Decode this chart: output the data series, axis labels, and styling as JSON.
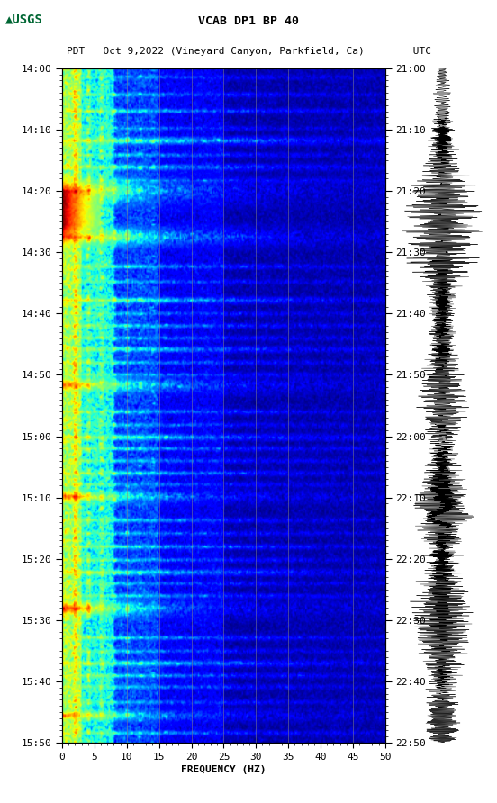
{
  "title_line1": "VCAB DP1 BP 40",
  "title_line2": "PDT   Oct 9,2022 (Vineyard Canyon, Parkfield, Ca)        UTC",
  "xlabel": "FREQUENCY (HZ)",
  "freq_min": 0,
  "freq_max": 50,
  "y_tick_labels_left": [
    "14:00",
    "14:10",
    "14:20",
    "14:30",
    "14:40",
    "14:50",
    "15:00",
    "15:10",
    "15:20",
    "15:30",
    "15:40",
    "15:50"
  ],
  "y_tick_labels_right": [
    "21:00",
    "21:10",
    "21:20",
    "21:30",
    "21:40",
    "21:50",
    "22:00",
    "22:10",
    "22:20",
    "22:30",
    "22:40",
    "22:50"
  ],
  "x_ticks": [
    0,
    5,
    10,
    15,
    20,
    25,
    30,
    35,
    40,
    45,
    50
  ],
  "vert_grid_freqs": [
    5,
    10,
    15,
    20,
    25,
    30,
    35,
    40,
    45
  ],
  "colormap": "jet",
  "n_time_bins": 660,
  "n_freq_bins": 250,
  "events": [
    {
      "t": 0.015,
      "dur": 0.012,
      "amp": 0.55,
      "freq_decay": 18
    },
    {
      "t": 0.04,
      "dur": 0.01,
      "amp": 0.6,
      "freq_decay": 20
    },
    {
      "t": 0.065,
      "dur": 0.012,
      "amp": 0.65,
      "freq_decay": 22
    },
    {
      "t": 0.09,
      "dur": 0.01,
      "amp": 0.55,
      "freq_decay": 18
    },
    {
      "t": 0.108,
      "dur": 0.018,
      "amp": 0.7,
      "freq_decay": 25
    },
    {
      "t": 0.13,
      "dur": 0.012,
      "amp": 0.6,
      "freq_decay": 20
    },
    {
      "t": 0.148,
      "dur": 0.014,
      "amp": 0.65,
      "freq_decay": 22
    },
    {
      "t": 0.168,
      "dur": 0.012,
      "amp": 0.58,
      "freq_decay": 19
    },
    {
      "t": 0.183,
      "dur": 0.06,
      "amp": 0.98,
      "freq_decay": 12
    },
    {
      "t": 0.25,
      "dur": 0.04,
      "amp": 0.9,
      "freq_decay": 15
    },
    {
      "t": 0.295,
      "dur": 0.012,
      "amp": 0.65,
      "freq_decay": 20
    },
    {
      "t": 0.318,
      "dur": 0.01,
      "amp": 0.6,
      "freq_decay": 18
    },
    {
      "t": 0.345,
      "dur": 0.014,
      "amp": 0.72,
      "freq_decay": 22
    },
    {
      "t": 0.365,
      "dur": 0.01,
      "amp": 0.58,
      "freq_decay": 18
    },
    {
      "t": 0.383,
      "dur": 0.012,
      "amp": 0.65,
      "freq_decay": 20
    },
    {
      "t": 0.4,
      "dur": 0.01,
      "amp": 0.6,
      "freq_decay": 19
    },
    {
      "t": 0.418,
      "dur": 0.014,
      "amp": 0.68,
      "freq_decay": 21
    },
    {
      "t": 0.437,
      "dur": 0.012,
      "amp": 0.62,
      "freq_decay": 20
    },
    {
      "t": 0.455,
      "dur": 0.01,
      "amp": 0.6,
      "freq_decay": 18
    },
    {
      "t": 0.47,
      "dur": 0.035,
      "amp": 0.85,
      "freq_decay": 14
    },
    {
      "t": 0.51,
      "dur": 0.012,
      "amp": 0.65,
      "freq_decay": 20
    },
    {
      "t": 0.53,
      "dur": 0.01,
      "amp": 0.6,
      "freq_decay": 18
    },
    {
      "t": 0.548,
      "dur": 0.014,
      "amp": 0.7,
      "freq_decay": 22
    },
    {
      "t": 0.565,
      "dur": 0.012,
      "amp": 0.65,
      "freq_decay": 20
    },
    {
      "t": 0.583,
      "dur": 0.01,
      "amp": 0.62,
      "freq_decay": 19
    },
    {
      "t": 0.6,
      "dur": 0.012,
      "amp": 0.68,
      "freq_decay": 21
    },
    {
      "t": 0.618,
      "dur": 0.01,
      "amp": 0.6,
      "freq_decay": 18
    },
    {
      "t": 0.635,
      "dur": 0.03,
      "amp": 0.88,
      "freq_decay": 13
    },
    {
      "t": 0.67,
      "dur": 0.012,
      "amp": 0.65,
      "freq_decay": 20
    },
    {
      "t": 0.69,
      "dur": 0.01,
      "amp": 0.6,
      "freq_decay": 18
    },
    {
      "t": 0.71,
      "dur": 0.012,
      "amp": 0.68,
      "freq_decay": 21
    },
    {
      "t": 0.73,
      "dur": 0.01,
      "amp": 0.62,
      "freq_decay": 19
    },
    {
      "t": 0.748,
      "dur": 0.014,
      "amp": 0.7,
      "freq_decay": 22
    },
    {
      "t": 0.765,
      "dur": 0.01,
      "amp": 0.6,
      "freq_decay": 18
    },
    {
      "t": 0.782,
      "dur": 0.012,
      "amp": 0.65,
      "freq_decay": 20
    },
    {
      "t": 0.8,
      "dur": 0.04,
      "amp": 0.92,
      "freq_decay": 12
    },
    {
      "t": 0.845,
      "dur": 0.012,
      "amp": 0.65,
      "freq_decay": 20
    },
    {
      "t": 0.865,
      "dur": 0.01,
      "amp": 0.6,
      "freq_decay": 18
    },
    {
      "t": 0.883,
      "dur": 0.014,
      "amp": 0.7,
      "freq_decay": 22
    },
    {
      "t": 0.9,
      "dur": 0.012,
      "amp": 0.65,
      "freq_decay": 20
    },
    {
      "t": 0.918,
      "dur": 0.01,
      "amp": 0.62,
      "freq_decay": 19
    },
    {
      "t": 0.94,
      "dur": 0.01,
      "amp": 0.6,
      "freq_decay": 18
    },
    {
      "t": 0.96,
      "dur": 0.025,
      "amp": 0.85,
      "freq_decay": 13
    },
    {
      "t": 0.985,
      "dur": 0.012,
      "amp": 0.65,
      "freq_decay": 20
    }
  ]
}
